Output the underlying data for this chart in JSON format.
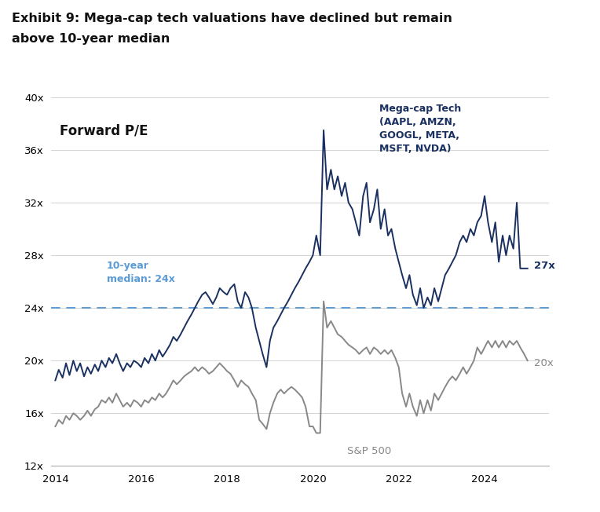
{
  "title_line1": "Exhibit 9: Mega-cap tech valuations have declined but remain",
  "title_line2": "above 10-year median",
  "ylim": [
    12,
    40
  ],
  "yticks": [
    12,
    16,
    20,
    24,
    28,
    32,
    36,
    40
  ],
  "xlim_start": 2013.9,
  "xlim_end": 2025.5,
  "xticks": [
    2014,
    2016,
    2018,
    2020,
    2022,
    2024
  ],
  "median_line": 24,
  "median_label": "10-year\nmedian: 24x",
  "forward_pe_label": "Forward P/E",
  "mega_cap_label": "Mega-cap Tech\n(AAPL, AMZN,\nGOOGL, META,\nMSFT, NVDA)",
  "sp500_label": "S&P 500",
  "mega_cap_end_label": "27x",
  "sp500_end_label": "20x",
  "mega_cap_color": "#1a3060",
  "sp500_color": "#888888",
  "median_color": "#5b9bd5",
  "background_color": "#ffffff",
  "mega_cap_data": [
    [
      2014.0,
      18.5
    ],
    [
      2014.08,
      19.3
    ],
    [
      2014.17,
      18.7
    ],
    [
      2014.25,
      19.8
    ],
    [
      2014.33,
      18.9
    ],
    [
      2014.42,
      20.0
    ],
    [
      2014.5,
      19.2
    ],
    [
      2014.58,
      19.8
    ],
    [
      2014.67,
      18.8
    ],
    [
      2014.75,
      19.5
    ],
    [
      2014.83,
      19.0
    ],
    [
      2014.92,
      19.7
    ],
    [
      2015.0,
      19.2
    ],
    [
      2015.08,
      20.0
    ],
    [
      2015.17,
      19.5
    ],
    [
      2015.25,
      20.2
    ],
    [
      2015.33,
      19.8
    ],
    [
      2015.42,
      20.5
    ],
    [
      2015.5,
      19.8
    ],
    [
      2015.58,
      19.2
    ],
    [
      2015.67,
      19.8
    ],
    [
      2015.75,
      19.5
    ],
    [
      2015.83,
      20.0
    ],
    [
      2015.92,
      19.8
    ],
    [
      2016.0,
      19.5
    ],
    [
      2016.08,
      20.2
    ],
    [
      2016.17,
      19.8
    ],
    [
      2016.25,
      20.5
    ],
    [
      2016.33,
      20.0
    ],
    [
      2016.42,
      20.8
    ],
    [
      2016.5,
      20.3
    ],
    [
      2016.58,
      20.7
    ],
    [
      2016.67,
      21.2
    ],
    [
      2016.75,
      21.8
    ],
    [
      2016.83,
      21.5
    ],
    [
      2016.92,
      22.0
    ],
    [
      2017.0,
      22.5
    ],
    [
      2017.08,
      23.0
    ],
    [
      2017.17,
      23.5
    ],
    [
      2017.25,
      24.0
    ],
    [
      2017.33,
      24.5
    ],
    [
      2017.42,
      25.0
    ],
    [
      2017.5,
      25.2
    ],
    [
      2017.58,
      24.8
    ],
    [
      2017.67,
      24.3
    ],
    [
      2017.75,
      24.8
    ],
    [
      2017.83,
      25.5
    ],
    [
      2017.92,
      25.2
    ],
    [
      2018.0,
      25.0
    ],
    [
      2018.08,
      25.5
    ],
    [
      2018.17,
      25.8
    ],
    [
      2018.25,
      24.5
    ],
    [
      2018.33,
      24.0
    ],
    [
      2018.42,
      25.2
    ],
    [
      2018.5,
      24.8
    ],
    [
      2018.58,
      24.0
    ],
    [
      2018.67,
      22.5
    ],
    [
      2018.75,
      21.5
    ],
    [
      2018.83,
      20.5
    ],
    [
      2018.92,
      19.5
    ],
    [
      2019.0,
      21.5
    ],
    [
      2019.08,
      22.5
    ],
    [
      2019.17,
      23.0
    ],
    [
      2019.25,
      23.5
    ],
    [
      2019.33,
      24.0
    ],
    [
      2019.42,
      24.5
    ],
    [
      2019.5,
      25.0
    ],
    [
      2019.58,
      25.5
    ],
    [
      2019.67,
      26.0
    ],
    [
      2019.75,
      26.5
    ],
    [
      2019.83,
      27.0
    ],
    [
      2019.92,
      27.5
    ],
    [
      2020.0,
      28.0
    ],
    [
      2020.08,
      29.5
    ],
    [
      2020.17,
      28.0
    ],
    [
      2020.25,
      37.5
    ],
    [
      2020.33,
      33.0
    ],
    [
      2020.42,
      34.5
    ],
    [
      2020.5,
      33.0
    ],
    [
      2020.58,
      34.0
    ],
    [
      2020.67,
      32.5
    ],
    [
      2020.75,
      33.5
    ],
    [
      2020.83,
      32.0
    ],
    [
      2020.92,
      31.5
    ],
    [
      2021.0,
      30.5
    ],
    [
      2021.08,
      29.5
    ],
    [
      2021.17,
      32.5
    ],
    [
      2021.25,
      33.5
    ],
    [
      2021.33,
      30.5
    ],
    [
      2021.42,
      31.5
    ],
    [
      2021.5,
      33.0
    ],
    [
      2021.58,
      30.0
    ],
    [
      2021.67,
      31.5
    ],
    [
      2021.75,
      29.5
    ],
    [
      2021.83,
      30.0
    ],
    [
      2021.92,
      28.5
    ],
    [
      2022.0,
      27.5
    ],
    [
      2022.08,
      26.5
    ],
    [
      2022.17,
      25.5
    ],
    [
      2022.25,
      26.5
    ],
    [
      2022.33,
      25.0
    ],
    [
      2022.42,
      24.2
    ],
    [
      2022.5,
      25.5
    ],
    [
      2022.58,
      24.0
    ],
    [
      2022.67,
      24.8
    ],
    [
      2022.75,
      24.2
    ],
    [
      2022.83,
      25.5
    ],
    [
      2022.92,
      24.5
    ],
    [
      2023.0,
      25.5
    ],
    [
      2023.08,
      26.5
    ],
    [
      2023.17,
      27.0
    ],
    [
      2023.25,
      27.5
    ],
    [
      2023.33,
      28.0
    ],
    [
      2023.42,
      29.0
    ],
    [
      2023.5,
      29.5
    ],
    [
      2023.58,
      29.0
    ],
    [
      2023.67,
      30.0
    ],
    [
      2023.75,
      29.5
    ],
    [
      2023.83,
      30.5
    ],
    [
      2023.92,
      31.0
    ],
    [
      2024.0,
      32.5
    ],
    [
      2024.08,
      30.5
    ],
    [
      2024.17,
      29.0
    ],
    [
      2024.25,
      30.5
    ],
    [
      2024.33,
      27.5
    ],
    [
      2024.42,
      29.5
    ],
    [
      2024.5,
      28.0
    ],
    [
      2024.58,
      29.5
    ],
    [
      2024.67,
      28.5
    ],
    [
      2024.75,
      32.0
    ],
    [
      2024.83,
      27.0
    ],
    [
      2024.92,
      27.0
    ],
    [
      2025.0,
      27.0
    ]
  ],
  "sp500_data": [
    [
      2014.0,
      15.0
    ],
    [
      2014.08,
      15.5
    ],
    [
      2014.17,
      15.2
    ],
    [
      2014.25,
      15.8
    ],
    [
      2014.33,
      15.5
    ],
    [
      2014.42,
      16.0
    ],
    [
      2014.5,
      15.8
    ],
    [
      2014.58,
      15.5
    ],
    [
      2014.67,
      15.8
    ],
    [
      2014.75,
      16.2
    ],
    [
      2014.83,
      15.8
    ],
    [
      2014.92,
      16.3
    ],
    [
      2015.0,
      16.5
    ],
    [
      2015.08,
      17.0
    ],
    [
      2015.17,
      16.8
    ],
    [
      2015.25,
      17.2
    ],
    [
      2015.33,
      16.8
    ],
    [
      2015.42,
      17.5
    ],
    [
      2015.5,
      17.0
    ],
    [
      2015.58,
      16.5
    ],
    [
      2015.67,
      16.8
    ],
    [
      2015.75,
      16.5
    ],
    [
      2015.83,
      17.0
    ],
    [
      2015.92,
      16.8
    ],
    [
      2016.0,
      16.5
    ],
    [
      2016.08,
      17.0
    ],
    [
      2016.17,
      16.8
    ],
    [
      2016.25,
      17.2
    ],
    [
      2016.33,
      17.0
    ],
    [
      2016.42,
      17.5
    ],
    [
      2016.5,
      17.2
    ],
    [
      2016.58,
      17.5
    ],
    [
      2016.67,
      18.0
    ],
    [
      2016.75,
      18.5
    ],
    [
      2016.83,
      18.2
    ],
    [
      2016.92,
      18.5
    ],
    [
      2017.0,
      18.8
    ],
    [
      2017.08,
      19.0
    ],
    [
      2017.17,
      19.2
    ],
    [
      2017.25,
      19.5
    ],
    [
      2017.33,
      19.2
    ],
    [
      2017.42,
      19.5
    ],
    [
      2017.5,
      19.3
    ],
    [
      2017.58,
      19.0
    ],
    [
      2017.67,
      19.2
    ],
    [
      2017.75,
      19.5
    ],
    [
      2017.83,
      19.8
    ],
    [
      2017.92,
      19.5
    ],
    [
      2018.0,
      19.2
    ],
    [
      2018.08,
      19.0
    ],
    [
      2018.17,
      18.5
    ],
    [
      2018.25,
      18.0
    ],
    [
      2018.33,
      18.5
    ],
    [
      2018.42,
      18.2
    ],
    [
      2018.5,
      18.0
    ],
    [
      2018.58,
      17.5
    ],
    [
      2018.67,
      17.0
    ],
    [
      2018.75,
      15.5
    ],
    [
      2018.83,
      15.2
    ],
    [
      2018.92,
      14.8
    ],
    [
      2019.0,
      16.0
    ],
    [
      2019.08,
      16.8
    ],
    [
      2019.17,
      17.5
    ],
    [
      2019.25,
      17.8
    ],
    [
      2019.33,
      17.5
    ],
    [
      2019.42,
      17.8
    ],
    [
      2019.5,
      18.0
    ],
    [
      2019.58,
      17.8
    ],
    [
      2019.67,
      17.5
    ],
    [
      2019.75,
      17.2
    ],
    [
      2019.83,
      16.5
    ],
    [
      2019.92,
      15.0
    ],
    [
      2020.0,
      15.0
    ],
    [
      2020.08,
      14.5
    ],
    [
      2020.17,
      14.5
    ],
    [
      2020.25,
      24.5
    ],
    [
      2020.33,
      22.5
    ],
    [
      2020.42,
      23.0
    ],
    [
      2020.5,
      22.5
    ],
    [
      2020.58,
      22.0
    ],
    [
      2020.67,
      21.8
    ],
    [
      2020.75,
      21.5
    ],
    [
      2020.83,
      21.2
    ],
    [
      2020.92,
      21.0
    ],
    [
      2021.0,
      20.8
    ],
    [
      2021.08,
      20.5
    ],
    [
      2021.17,
      20.8
    ],
    [
      2021.25,
      21.0
    ],
    [
      2021.33,
      20.5
    ],
    [
      2021.42,
      21.0
    ],
    [
      2021.5,
      20.8
    ],
    [
      2021.58,
      20.5
    ],
    [
      2021.67,
      20.8
    ],
    [
      2021.75,
      20.5
    ],
    [
      2021.83,
      20.8
    ],
    [
      2021.92,
      20.2
    ],
    [
      2022.0,
      19.5
    ],
    [
      2022.08,
      17.5
    ],
    [
      2022.17,
      16.5
    ],
    [
      2022.25,
      17.5
    ],
    [
      2022.33,
      16.5
    ],
    [
      2022.42,
      15.8
    ],
    [
      2022.5,
      17.0
    ],
    [
      2022.58,
      16.0
    ],
    [
      2022.67,
      17.0
    ],
    [
      2022.75,
      16.2
    ],
    [
      2022.83,
      17.5
    ],
    [
      2022.92,
      17.0
    ],
    [
      2023.0,
      17.5
    ],
    [
      2023.08,
      18.0
    ],
    [
      2023.17,
      18.5
    ],
    [
      2023.25,
      18.8
    ],
    [
      2023.33,
      18.5
    ],
    [
      2023.42,
      19.0
    ],
    [
      2023.5,
      19.5
    ],
    [
      2023.58,
      19.0
    ],
    [
      2023.67,
      19.5
    ],
    [
      2023.75,
      20.0
    ],
    [
      2023.83,
      21.0
    ],
    [
      2023.92,
      20.5
    ],
    [
      2024.0,
      21.0
    ],
    [
      2024.08,
      21.5
    ],
    [
      2024.17,
      21.0
    ],
    [
      2024.25,
      21.5
    ],
    [
      2024.33,
      21.0
    ],
    [
      2024.42,
      21.5
    ],
    [
      2024.5,
      21.0
    ],
    [
      2024.58,
      21.5
    ],
    [
      2024.67,
      21.2
    ],
    [
      2024.75,
      21.5
    ],
    [
      2024.83,
      21.0
    ],
    [
      2024.92,
      20.5
    ],
    [
      2025.0,
      20.0
    ]
  ]
}
